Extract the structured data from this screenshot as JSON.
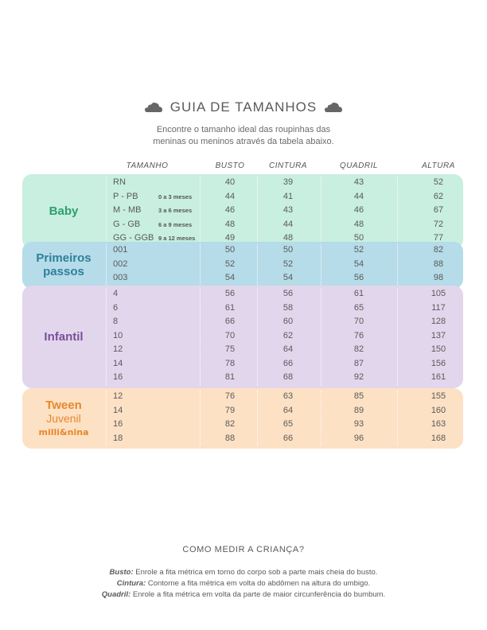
{
  "header": {
    "title": "GUIA DE TAMANHOS",
    "subtitle_lines": [
      "Encontre o tamanho ideal das roupinhas das",
      "meninas ou meninos através da tabela abaixo."
    ]
  },
  "columns": [
    "TAMANHO",
    "BUSTO",
    "CINTURA",
    "QUADRIL",
    "ALTURA"
  ],
  "groups": [
    {
      "label_lines": [
        "Baby"
      ],
      "color": "#c8efe0",
      "label_color": "#2e9e6e",
      "rows": [
        {
          "size": "RN",
          "age": "",
          "busto": "40",
          "cintura": "39",
          "quadril": "43",
          "altura": "52"
        },
        {
          "size": "P - PB",
          "age": "0 a 3 meses",
          "busto": "44",
          "cintura": "41",
          "quadril": "44",
          "altura": "62"
        },
        {
          "size": "M - MB",
          "age": "3 a 6 meses",
          "busto": "46",
          "cintura": "43",
          "quadril": "46",
          "altura": "67"
        },
        {
          "size": "G - GB",
          "age": "6 a 9 meses",
          "busto": "48",
          "cintura": "44",
          "quadril": "48",
          "altura": "72"
        },
        {
          "size": "GG - GGB",
          "age": "9 a 12 meses",
          "busto": "49",
          "cintura": "48",
          "quadril": "50",
          "altura": "77"
        }
      ]
    },
    {
      "label_lines": [
        "Primeiros",
        "passos"
      ],
      "color": "#b5dce8",
      "label_color": "#2f7f9b",
      "rows": [
        {
          "size": "001",
          "age": "",
          "busto": "50",
          "cintura": "50",
          "quadril": "52",
          "altura": "82"
        },
        {
          "size": "002",
          "age": "",
          "busto": "52",
          "cintura": "52",
          "quadril": "54",
          "altura": "88"
        },
        {
          "size": "003",
          "age": "",
          "busto": "54",
          "cintura": "54",
          "quadril": "56",
          "altura": "98"
        }
      ]
    },
    {
      "label_lines": [
        "Infantil"
      ],
      "color": "#e2d6ec",
      "label_color": "#7a4f9a",
      "rows": [
        {
          "size": "4",
          "age": "",
          "busto": "56",
          "cintura": "56",
          "quadril": "61",
          "altura": "105"
        },
        {
          "size": "6",
          "age": "",
          "busto": "61",
          "cintura": "58",
          "quadril": "65",
          "altura": "117"
        },
        {
          "size": "8",
          "age": "",
          "busto": "66",
          "cintura": "60",
          "quadril": "70",
          "altura": "128"
        },
        {
          "size": "10",
          "age": "",
          "busto": "70",
          "cintura": "62",
          "quadril": "76",
          "altura": "137"
        },
        {
          "size": "12",
          "age": "",
          "busto": "75",
          "cintura": "64",
          "quadril": "82",
          "altura": "150"
        },
        {
          "size": "14",
          "age": "",
          "busto": "78",
          "cintura": "66",
          "quadril": "87",
          "altura": "156"
        },
        {
          "size": "16",
          "age": "",
          "busto": "81",
          "cintura": "68",
          "quadril": "92",
          "altura": "161"
        }
      ]
    },
    {
      "label_lines": [
        "Tween",
        "Juvenil",
        "milli&nina"
      ],
      "color": "#fde1c4",
      "label_color": "#e8872e",
      "rows": [
        {
          "size": "12",
          "age": "",
          "busto": "76",
          "cintura": "63",
          "quadril": "85",
          "altura": "155"
        },
        {
          "size": "14",
          "age": "",
          "busto": "79",
          "cintura": "64",
          "quadril": "89",
          "altura": "160"
        },
        {
          "size": "16",
          "age": "",
          "busto": "82",
          "cintura": "65",
          "quadril": "93",
          "altura": "163"
        },
        {
          "size": "18",
          "age": "",
          "busto": "88",
          "cintura": "66",
          "quadril": "96",
          "altura": "168"
        }
      ]
    }
  ],
  "how_to": {
    "title": "COMO MEDIR A CRIANÇA?",
    "items": [
      {
        "term": "Busto:",
        "text": " Enrole a fita métrica em torno do corpo sob a parte mais cheia do busto."
      },
      {
        "term": "Cintura:",
        "text": " Contorne a fita métrica em volta do abdômen na altura do umbigo."
      },
      {
        "term": "Quadril:",
        "text": " Enrole a fita métrica em volta da parte de maior circunferência do bumbum."
      }
    ]
  },
  "icons": {
    "title_left": "cloud-icon",
    "title_right": "cloud-icon"
  }
}
